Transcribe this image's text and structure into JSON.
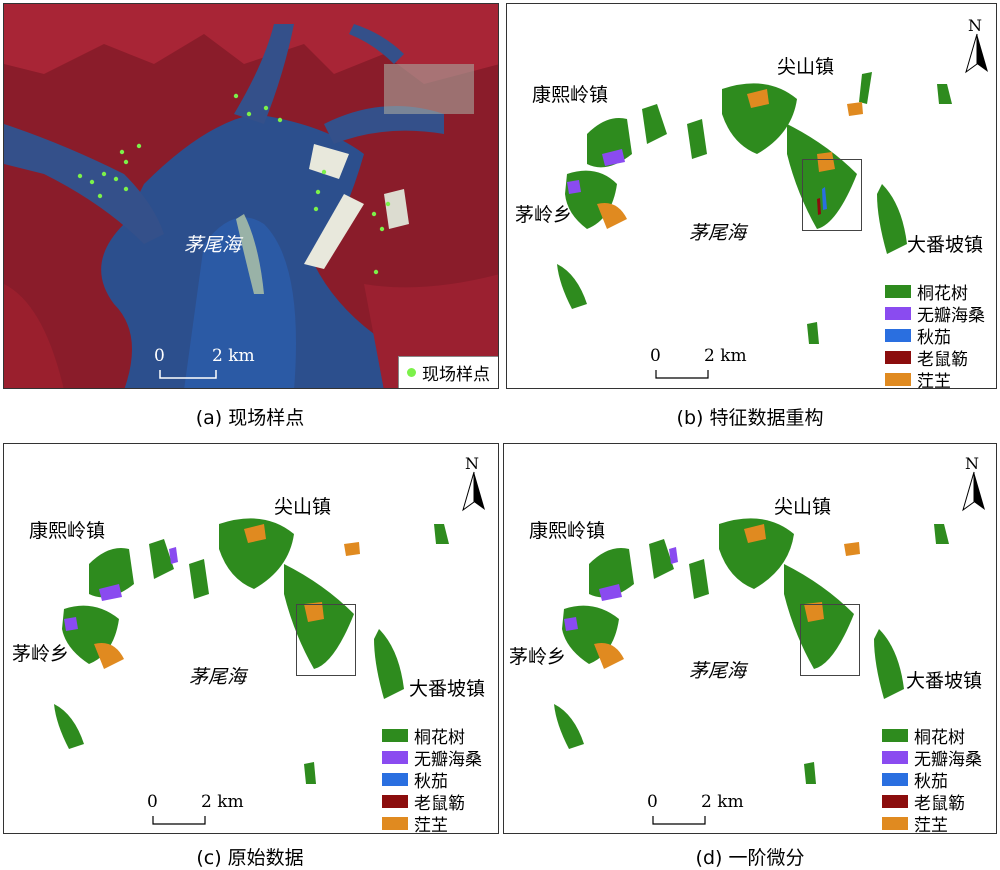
{
  "panels": {
    "a": {
      "caption": "(a) 现场样点",
      "sea_label": "茅尾海",
      "scale_left": "0",
      "scale_right": "2 km",
      "legend_label": "现场样点"
    },
    "b": {
      "caption": "(b) 特征数据重构",
      "sea_label": "茅尾海",
      "north": "N",
      "scale_left": "0",
      "scale_right": "2 km"
    },
    "c": {
      "caption": "(c) 原始数据",
      "sea_label": "茅尾海",
      "north": "N",
      "scale_left": "0",
      "scale_right": "2 km"
    },
    "d": {
      "caption": "(d) 一阶微分",
      "sea_label": "茅尾海",
      "north": "N",
      "scale_left": "0",
      "scale_right": "2 km"
    }
  },
  "places": {
    "kangxiling": "康熙岭镇",
    "jianshan": "尖山镇",
    "maoling": "茅岭乡",
    "dafanpo": "大番坡镇"
  },
  "legend": [
    {
      "label": "桐花树",
      "color": "#2e8b1e"
    },
    {
      "label": "无瓣海桑",
      "color": "#8a4bf0"
    },
    {
      "label": "秋茄",
      "color": "#2a6fe0"
    },
    {
      "label": "老鼠簕",
      "color": "#8b0d0d"
    },
    {
      "label": "茳芏",
      "color": "#e08a20"
    }
  ],
  "colors": {
    "field_point": "#7cf14a",
    "water": "#2d4f8e",
    "land": "#b3202e"
  }
}
